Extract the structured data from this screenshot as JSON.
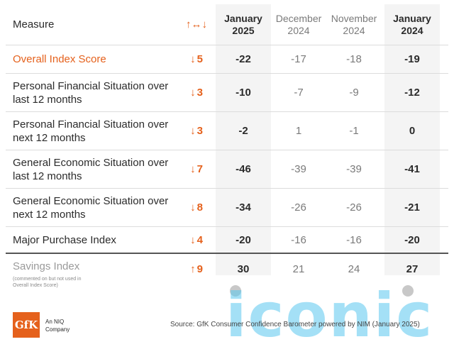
{
  "header": {
    "measure": "Measure",
    "change_icon": "↑↔↓",
    "col_jan25": "January 2025",
    "col_dec24": "December 2024",
    "col_nov24": "November 2024",
    "col_jan24": "January 2024"
  },
  "rows": [
    {
      "measure": "Overall Index Score",
      "dir": "↓",
      "change": "5",
      "jan25": "-22",
      "dec24": "-17",
      "nov24": "-18",
      "jan24": "-19"
    },
    {
      "measure": "Personal Financial Situation over last 12 months",
      "dir": "↓",
      "change": "3",
      "jan25": "-10",
      "dec24": "-7",
      "nov24": "-9",
      "jan24": "-12"
    },
    {
      "measure": "Personal Financial Situation over next 12 months",
      "dir": "↓",
      "change": "3",
      "jan25": "-2",
      "dec24": "1",
      "nov24": "-1",
      "jan24": "0"
    },
    {
      "measure": "General Economic Situation over last 12 months",
      "dir": "↓",
      "change": "7",
      "jan25": "-46",
      "dec24": "-39",
      "nov24": "-39",
      "jan24": "-41"
    },
    {
      "measure": "General Economic Situation over next 12 months",
      "dir": "↓",
      "change": "8",
      "jan25": "-34",
      "dec24": "-26",
      "nov24": "-26",
      "jan24": "-21"
    },
    {
      "measure": "Major Purchase Index",
      "dir": "↓",
      "change": "4",
      "jan25": "-20",
      "dec24": "-16",
      "nov24": "-16",
      "jan24": "-20"
    }
  ],
  "savings": {
    "measure": "Savings Index",
    "note": "(commented on but not used in Overall Index Score)",
    "dir": "↑",
    "change": "9",
    "jan25": "30",
    "dec24": "21",
    "nov24": "24",
    "jan24": "27"
  },
  "footer": {
    "logo": "GfK",
    "tagline": "An NIQ Company",
    "source": "Source: GfK Consumer Confidence Barometer powered by NIM (January 2025)"
  },
  "watermark": "iconic",
  "colors": {
    "accent": "#e5611c",
    "watermark": "#5bc8ef"
  }
}
